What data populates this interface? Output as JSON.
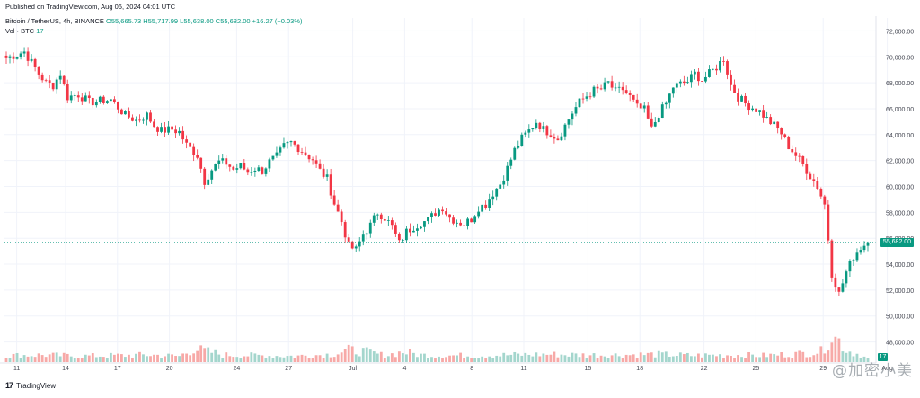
{
  "header": {
    "published": "Published on TradingView.com, Aug 06, 2024 04:01 UTC",
    "symbol": "Bitcoin / TetherUS, 4h, BINANCE",
    "ohlc": "O55,665.73 H55,717.99 L55,638.00 C55,682.00 +16.27 (+0.03%)",
    "volume_label": "Vol · BTC",
    "volume_value": "17"
  },
  "footer": {
    "logo": "TradingView",
    "logo_mark": "17",
    "watermark": "@加密小美"
  },
  "colors": {
    "up": "#089981",
    "down": "#f23645",
    "vol_up": "#a4d6cd",
    "vol_down": "#f7a9a7",
    "grid": "#f0f3fa",
    "text": "#131722"
  },
  "chart_data": {
    "type": "candlestick",
    "x_tick_labels": [
      "11",
      "14",
      "17",
      "20",
      "24",
      "27",
      "Jul",
      "4",
      "8",
      "11",
      "15",
      "18",
      "22",
      "25",
      "29",
      "Aug"
    ],
    "y_tick_labels": [
      "72,000.00",
      "70,000.00",
      "68,000.00",
      "66,000.00",
      "64,000.00",
      "62,000.00",
      "60,000.00",
      "58,000.00",
      "56,000.00",
      "54,000.00",
      "52,000.00",
      "50,000.00",
      "48,000.00"
    ],
    "ylim": [
      47000,
      73000
    ],
    "last_price": 55682.0,
    "last_price_label": "55,682.00",
    "volume_last": "17",
    "close_path": [
      [
        0,
        69900
      ],
      [
        5,
        70400
      ],
      [
        9,
        68700
      ],
      [
        11,
        68000
      ],
      [
        13,
        67800
      ],
      [
        15,
        68700
      ],
      [
        17,
        66900
      ],
      [
        20,
        67100
      ],
      [
        23,
        66500
      ],
      [
        26,
        66600
      ],
      [
        29,
        66700
      ],
      [
        33,
        65500
      ],
      [
        36,
        65100
      ],
      [
        39,
        65500
      ],
      [
        41,
        64700
      ],
      [
        43,
        64300
      ],
      [
        46,
        64400
      ],
      [
        48,
        64200
      ],
      [
        50,
        63200
      ],
      [
        53,
        62400
      ],
      [
        55,
        60400
      ],
      [
        57,
        61300
      ],
      [
        59,
        61900
      ],
      [
        61,
        61800
      ],
      [
        63,
        61300
      ],
      [
        65,
        61600
      ],
      [
        67,
        61100
      ],
      [
        69,
        61400
      ],
      [
        71,
        61200
      ],
      [
        73,
        61900
      ],
      [
        75,
        62300
      ],
      [
        77,
        63100
      ],
      [
        79,
        63400
      ],
      [
        81,
        63000
      ],
      [
        83,
        62500
      ],
      [
        85,
        62100
      ],
      [
        87,
        61200
      ],
      [
        89,
        60600
      ],
      [
        91,
        58700
      ],
      [
        93,
        57300
      ],
      [
        95,
        55400
      ],
      [
        97,
        55100
      ],
      [
        99,
        56300
      ],
      [
        101,
        57000
      ],
      [
        103,
        58000
      ],
      [
        105,
        57600
      ],
      [
        107,
        56900
      ],
      [
        109,
        55600
      ],
      [
        111,
        56500
      ],
      [
        113,
        56900
      ],
      [
        115,
        57200
      ],
      [
        117,
        57400
      ],
      [
        119,
        58000
      ],
      [
        121,
        58400
      ],
      [
        123,
        57600
      ],
      [
        125,
        57300
      ],
      [
        127,
        57100
      ],
      [
        129,
        57500
      ],
      [
        131,
        58400
      ],
      [
        133,
        58600
      ],
      [
        135,
        59500
      ],
      [
        137,
        60200
      ],
      [
        139,
        61400
      ],
      [
        141,
        62800
      ],
      [
        143,
        63700
      ],
      [
        145,
        64300
      ],
      [
        147,
        65000
      ],
      [
        149,
        64400
      ],
      [
        151,
        64100
      ],
      [
        153,
        63700
      ],
      [
        155,
        64700
      ],
      [
        157,
        65700
      ],
      [
        159,
        66500
      ],
      [
        161,
        67000
      ],
      [
        163,
        67400
      ],
      [
        165,
        67500
      ],
      [
        167,
        68000
      ],
      [
        169,
        67300
      ],
      [
        171,
        67500
      ],
      [
        173,
        66900
      ],
      [
        175,
        66100
      ],
      [
        177,
        65900
      ],
      [
        179,
        64400
      ],
      [
        181,
        65600
      ],
      [
        183,
        66400
      ],
      [
        185,
        67700
      ],
      [
        187,
        67900
      ],
      [
        189,
        68100
      ],
      [
        191,
        68700
      ],
      [
        193,
        68200
      ],
      [
        195,
        68700
      ],
      [
        197,
        69200
      ],
      [
        199,
        69900
      ],
      [
        201,
        67800
      ],
      [
        203,
        66900
      ],
      [
        205,
        66400
      ],
      [
        207,
        66100
      ],
      [
        209,
        65800
      ],
      [
        211,
        65200
      ],
      [
        213,
        64700
      ],
      [
        215,
        64100
      ],
      [
        217,
        63100
      ],
      [
        219,
        62400
      ],
      [
        221,
        61700
      ],
      [
        223,
        60800
      ],
      [
        225,
        60000
      ],
      [
        227,
        58600
      ],
      [
        229,
        53300
      ],
      [
        231,
        51700
      ],
      [
        233,
        53400
      ],
      [
        235,
        54600
      ],
      [
        237,
        55300
      ],
      [
        239,
        55682
      ]
    ],
    "volume_path": [
      [
        0,
        1.1
      ],
      [
        10,
        1.2
      ],
      [
        20,
        1.0
      ],
      [
        30,
        1.1
      ],
      [
        40,
        1.2
      ],
      [
        48,
        1.0
      ],
      [
        52,
        2.2
      ],
      [
        55,
        1.9
      ],
      [
        60,
        1.2
      ],
      [
        70,
        1.1
      ],
      [
        80,
        1.0
      ],
      [
        90,
        1.3
      ],
      [
        95,
        2.0
      ],
      [
        99,
        1.8
      ],
      [
        105,
        1.1
      ],
      [
        110,
        1.7
      ],
      [
        115,
        1.2
      ],
      [
        120,
        1.1
      ],
      [
        130,
        1.1
      ],
      [
        140,
        1.2
      ],
      [
        150,
        1.3
      ],
      [
        160,
        1.2
      ],
      [
        170,
        1.2
      ],
      [
        180,
        1.3
      ],
      [
        190,
        1.1
      ],
      [
        200,
        1.2
      ],
      [
        210,
        1.1
      ],
      [
        220,
        1.4
      ],
      [
        226,
        1.8
      ],
      [
        229,
        4.4
      ],
      [
        231,
        3.6
      ],
      [
        233,
        2.0
      ],
      [
        236,
        1.4
      ],
      [
        239,
        0.6
      ]
    ]
  }
}
